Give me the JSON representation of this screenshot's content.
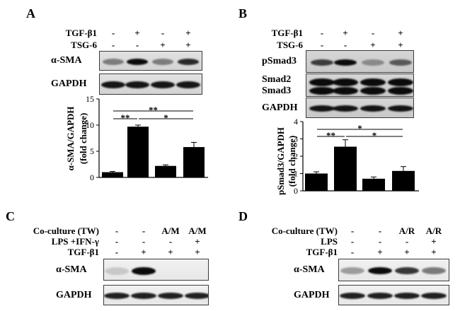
{
  "panels": {
    "A": {
      "letter": "A",
      "treatments": [
        {
          "name": "TGF-β1",
          "signs": [
            "-",
            "+",
            "-",
            "+"
          ]
        },
        {
          "name": "TSG-6",
          "signs": [
            "-",
            "-",
            "+",
            "+"
          ]
        }
      ],
      "blots": [
        {
          "label_lines": [
            "α-SMA"
          ],
          "intensity": [
            0.45,
            1.0,
            0.45,
            0.85
          ]
        },
        {
          "label_lines": [
            "GAPDH"
          ],
          "intensity": [
            0.95,
            0.95,
            0.95,
            0.95
          ]
        }
      ]
    },
    "B": {
      "letter": "B",
      "treatments": [
        {
          "name": "TGF-β1",
          "signs": [
            "-",
            "+",
            "-",
            "+"
          ]
        },
        {
          "name": "TSG-6",
          "signs": [
            "-",
            "-",
            "+",
            "+"
          ]
        }
      ],
      "blots": [
        {
          "label_lines": [
            "pSmad3"
          ],
          "intensity": [
            0.75,
            1.0,
            0.35,
            0.6
          ]
        },
        {
          "label_lines": [
            "Smad2",
            "Smad3"
          ],
          "intensity": [
            1.0,
            1.0,
            1.0,
            1.0
          ]
        },
        {
          "label_lines": [
            "GAPDH"
          ],
          "intensity": [
            0.95,
            0.95,
            0.95,
            0.95
          ]
        }
      ]
    },
    "C": {
      "letter": "C",
      "treatments": [
        {
          "name": "Co-culture (TW)",
          "signs": [
            "-",
            "-",
            "A/M",
            "A/M"
          ]
        },
        {
          "name": "LPS +IFN-γ",
          "signs": [
            "-",
            "-",
            "-",
            "+"
          ]
        },
        {
          "name": "TGF-β1",
          "signs": [
            "-",
            "+",
            "+",
            "+"
          ]
        }
      ],
      "blots": [
        {
          "label_lines": [
            "α-SMA"
          ],
          "intensity": [
            0.15,
            1.0,
            0.0,
            0.0
          ]
        },
        {
          "label_lines": [
            "GAPDH"
          ],
          "intensity": [
            0.9,
            0.9,
            0.9,
            0.9
          ]
        }
      ]
    },
    "D": {
      "letter": "D",
      "treatments": [
        {
          "name": "Co-culture (TW)",
          "signs": [
            "-",
            "-",
            "A/R",
            "A/R"
          ]
        },
        {
          "name": "LPS",
          "signs": [
            "-",
            "-",
            "-",
            "+"
          ]
        },
        {
          "name": "TGF-β1",
          "signs": [
            "-",
            "+",
            "+",
            "+"
          ]
        }
      ],
      "blots": [
        {
          "label_lines": [
            "α-SMA"
          ],
          "intensity": [
            0.35,
            1.0,
            0.8,
            0.5
          ]
        },
        {
          "label_lines": [
            "GAPDH"
          ],
          "intensity": [
            0.9,
            0.9,
            0.9,
            0.9
          ]
        }
      ]
    }
  },
  "chart_data": [
    {
      "type": "bar",
      "values": [
        1.0,
        9.7,
        2.2,
        5.8
      ],
      "errors": [
        0.15,
        0.3,
        0.2,
        0.9
      ],
      "ylim": [
        0,
        15
      ],
      "yticks": [
        0,
        5,
        10,
        15
      ],
      "ylabel_lines": [
        "α-SMA/GAPDH",
        "(fold change)"
      ],
      "grid": false,
      "annotations": [
        {
          "from": 0,
          "to": 1,
          "label": "**"
        },
        {
          "from": 0,
          "to": 3,
          "label": "**"
        },
        {
          "from": 1,
          "to": 3,
          "label": "*"
        }
      ]
    },
    {
      "type": "bar",
      "values": [
        1.0,
        2.55,
        0.7,
        1.15
      ],
      "errors": [
        0.1,
        0.4,
        0.1,
        0.25
      ],
      "ylim": [
        0,
        4
      ],
      "yticks": [
        0,
        1,
        2,
        3,
        4
      ],
      "ylabel_lines": [
        "pSmad3/GAPDH",
        "(fold change)"
      ],
      "grid": false,
      "annotations": [
        {
          "from": 0,
          "to": 1,
          "label": "**"
        },
        {
          "from": 0,
          "to": 3,
          "label": "*"
        },
        {
          "from": 1,
          "to": 3,
          "label": "*"
        }
      ]
    }
  ]
}
